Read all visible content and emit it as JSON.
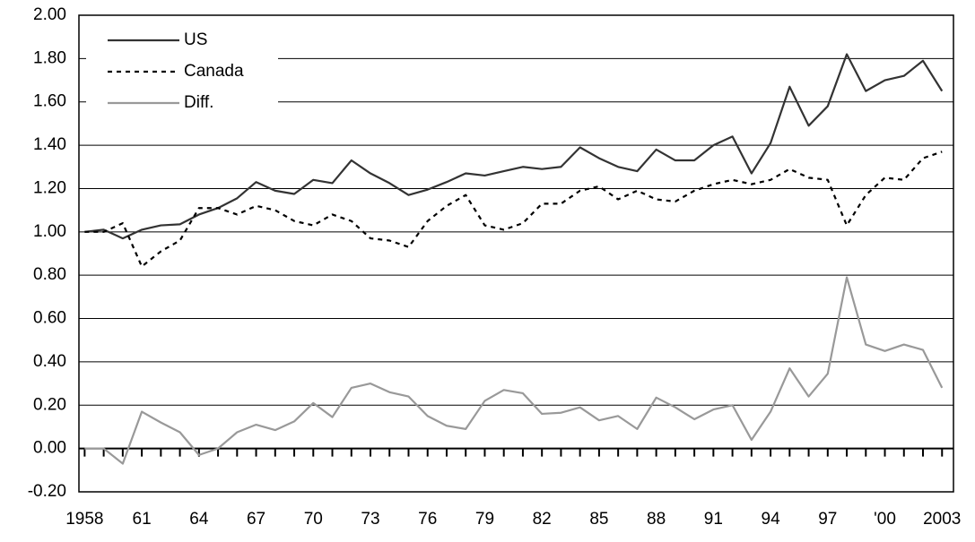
{
  "chart_data": {
    "type": "line",
    "x": [
      1958,
      1959,
      1960,
      1961,
      1962,
      1963,
      1964,
      1965,
      1966,
      1967,
      1968,
      1969,
      1970,
      1971,
      1972,
      1973,
      1974,
      1975,
      1976,
      1977,
      1978,
      1979,
      1980,
      1981,
      1982,
      1983,
      1984,
      1985,
      1986,
      1987,
      1988,
      1989,
      1990,
      1991,
      1992,
      1993,
      1994,
      1995,
      1996,
      1997,
      1998,
      1999,
      2000,
      2001,
      2002,
      2003
    ],
    "series": [
      {
        "name": "US",
        "color": "#333333",
        "linestyle": "solid",
        "values": [
          1.0,
          1.01,
          0.97,
          1.01,
          1.03,
          1.035,
          1.08,
          1.11,
          1.155,
          1.23,
          1.19,
          1.175,
          1.24,
          1.225,
          1.33,
          1.27,
          1.225,
          1.17,
          1.195,
          1.23,
          1.27,
          1.26,
          1.28,
          1.3,
          1.29,
          1.3,
          1.39,
          1.34,
          1.3,
          1.28,
          1.38,
          1.33,
          1.33,
          1.4,
          1.44,
          1.27,
          1.41,
          1.67,
          1.49,
          1.58,
          1.82,
          1.65,
          1.7,
          1.72,
          1.79,
          1.65
        ]
      },
      {
        "name": "Canada",
        "color": "#000000",
        "linestyle": "dashed",
        "values": [
          1.0,
          1.0,
          1.04,
          0.84,
          0.91,
          0.96,
          1.11,
          1.11,
          1.08,
          1.12,
          1.1,
          1.05,
          1.03,
          1.08,
          1.05,
          0.97,
          0.96,
          0.93,
          1.05,
          1.12,
          1.17,
          1.03,
          1.01,
          1.04,
          1.13,
          1.13,
          1.19,
          1.21,
          1.15,
          1.19,
          1.15,
          1.14,
          1.19,
          1.22,
          1.24,
          1.22,
          1.24,
          1.29,
          1.25,
          1.24,
          1.03,
          1.17,
          1.25,
          1.24,
          1.34,
          1.37
        ]
      },
      {
        "name": "Diff.",
        "color": "#999999",
        "linestyle": "solid",
        "values": [
          0.0,
          0.0,
          -0.07,
          0.17,
          0.12,
          0.075,
          -0.03,
          0.0,
          0.075,
          0.11,
          0.085,
          0.125,
          0.21,
          0.145,
          0.28,
          0.3,
          0.26,
          0.24,
          0.15,
          0.105,
          0.09,
          0.22,
          0.27,
          0.255,
          0.16,
          0.165,
          0.19,
          0.13,
          0.15,
          0.09,
          0.235,
          0.19,
          0.135,
          0.18,
          0.2,
          0.04,
          0.17,
          0.37,
          0.24,
          0.345,
          0.79,
          0.48,
          0.45,
          0.48,
          0.455,
          0.28
        ]
      }
    ],
    "xlim": [
      1957.7,
      2003.6
    ],
    "xticks": [
      1958,
      {
        "value": 1961,
        "label": "61"
      },
      {
        "value": 1964,
        "label": "64"
      },
      {
        "value": 1967,
        "label": "67"
      },
      {
        "value": 1970,
        "label": "70"
      },
      {
        "value": 1973,
        "label": "73"
      },
      {
        "value": 1976,
        "label": "76"
      },
      {
        "value": 1979,
        "label": "79"
      },
      {
        "value": 1982,
        "label": "82"
      },
      {
        "value": 1985,
        "label": "85"
      },
      {
        "value": 1988,
        "label": "88"
      },
      {
        "value": 1991,
        "label": "91"
      },
      {
        "value": 1994,
        "label": "94"
      },
      {
        "value": 1997,
        "label": "97"
      },
      {
        "value": 2000,
        "label": "'00"
      },
      2003
    ],
    "ylim": [
      -0.2,
      2.0
    ],
    "yticks": [
      {
        "value": -0.2,
        "label": "-0.20"
      },
      {
        "value": 0,
        "label": "0.00"
      },
      {
        "value": 0.2,
        "label": "0.20"
      },
      {
        "value": 0.4,
        "label": "0.40"
      },
      {
        "value": 0.6,
        "label": "0.60"
      },
      {
        "value": 0.8,
        "label": "0.80"
      },
      {
        "value": 1.0,
        "label": "1.00"
      },
      {
        "value": 1.2,
        "label": "1.20"
      },
      {
        "value": 1.4,
        "label": "1.40"
      },
      {
        "value": 1.6,
        "label": "1.60"
      },
      {
        "value": 1.8,
        "label": "1.80"
      },
      {
        "value": 2.0,
        "label": "2.00"
      }
    ],
    "grid": true,
    "legend": "upper-left"
  }
}
